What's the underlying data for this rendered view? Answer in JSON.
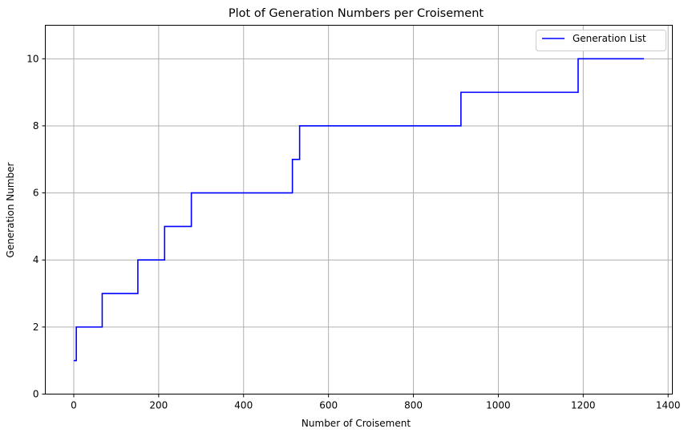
{
  "chart_data": {
    "type": "line",
    "title": "Plot of Generation Numbers per Croisement",
    "xlabel": "Number of Croisement",
    "ylabel": "Generation Number",
    "xlim": [
      -67,
      1410
    ],
    "ylim": [
      0,
      11
    ],
    "xticks": [
      0,
      200,
      400,
      600,
      800,
      1000,
      1200,
      1400
    ],
    "yticks": [
      0,
      2,
      4,
      6,
      8,
      10
    ],
    "grid": true,
    "legend_position": "top-right",
    "series": [
      {
        "name": "Generation List",
        "color": "#0000ff",
        "step": "post",
        "x": [
          0,
          6,
          67,
          151,
          214,
          277,
          515,
          532,
          912,
          1188,
          1343
        ],
        "y": [
          1,
          2,
          3,
          4,
          5,
          6,
          7,
          8,
          9,
          10,
          10
        ]
      }
    ]
  }
}
